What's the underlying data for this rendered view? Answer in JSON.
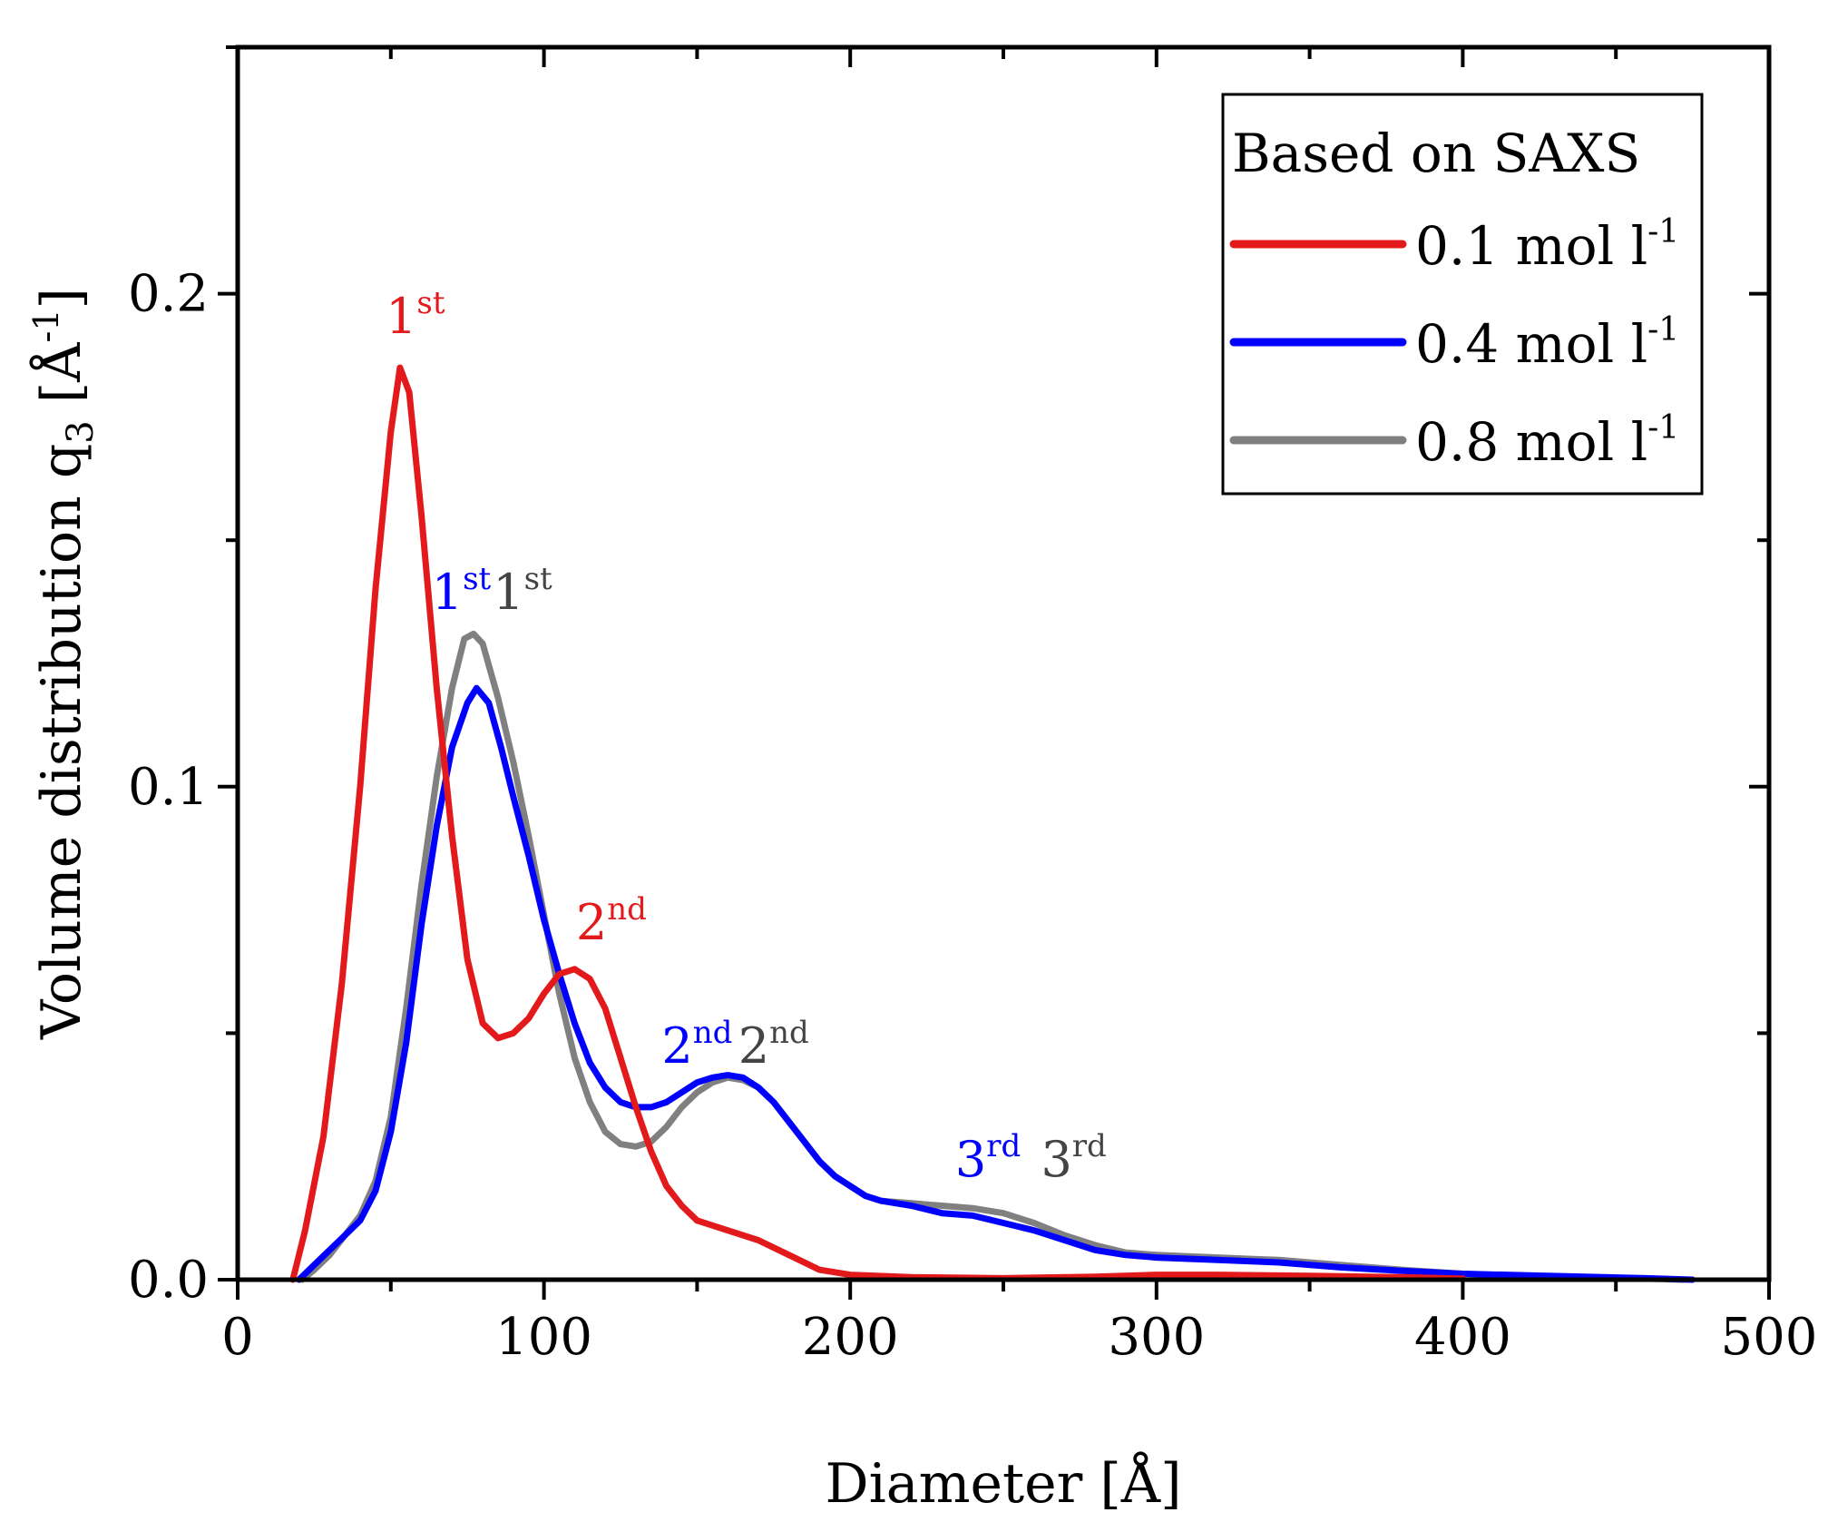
{
  "chart_data": {
    "type": "line",
    "xlabel": "Diameter [Å]",
    "ylabel": {
      "prefix": "Volume distribution q",
      "subscript": "3",
      "unit_open": " [Å",
      "unit_sup": "-1",
      "unit_close": "]"
    },
    "xlim": [
      0,
      500
    ],
    "ylim": [
      0,
      0.25
    ],
    "x_ticks": [
      "0",
      "100",
      "200",
      "300",
      "400",
      "500"
    ],
    "x_tick_values": [
      0,
      100,
      200,
      300,
      400,
      500
    ],
    "y_ticks": [
      "0.0",
      "0.1",
      "0.2"
    ],
    "y_tick_values": [
      0.0,
      0.1,
      0.2
    ],
    "x_minor_step": 50,
    "y_minor_step": 0.05,
    "grid": false,
    "legend": {
      "title": "Based on SAXS",
      "position": "top-right"
    },
    "series": [
      {
        "name": "0.1 mol l-1",
        "label_main": "0.1 mol l",
        "label_sup": "-1",
        "color": "#e31a1c",
        "points": [
          [
            18,
            0
          ],
          [
            22,
            0.01
          ],
          [
            28,
            0.029
          ],
          [
            34,
            0.06
          ],
          [
            40,
            0.1
          ],
          [
            45,
            0.14
          ],
          [
            50,
            0.172
          ],
          [
            53,
            0.185
          ],
          [
            56,
            0.18
          ],
          [
            60,
            0.155
          ],
          [
            65,
            0.12
          ],
          [
            70,
            0.09
          ],
          [
            75,
            0.065
          ],
          [
            80,
            0.052
          ],
          [
            85,
            0.049
          ],
          [
            90,
            0.05
          ],
          [
            95,
            0.053
          ],
          [
            100,
            0.058
          ],
          [
            105,
            0.062
          ],
          [
            110,
            0.063
          ],
          [
            115,
            0.061
          ],
          [
            120,
            0.055
          ],
          [
            125,
            0.045
          ],
          [
            130,
            0.035
          ],
          [
            135,
            0.026
          ],
          [
            140,
            0.019
          ],
          [
            145,
            0.015
          ],
          [
            150,
            0.012
          ],
          [
            160,
            0.01
          ],
          [
            170,
            0.008
          ],
          [
            180,
            0.005
          ],
          [
            190,
            0.002
          ],
          [
            200,
            0.001
          ],
          [
            220,
            0.0005
          ],
          [
            250,
            0.0003
          ],
          [
            280,
            0.0006
          ],
          [
            300,
            0.001
          ],
          [
            320,
            0.001
          ],
          [
            350,
            0.0008
          ],
          [
            380,
            0.0005
          ],
          [
            400,
            0.0002
          ]
        ]
      },
      {
        "name": "0.4 mol l-1",
        "label_main": "0.4 mol l",
        "label_sup": "-1",
        "color": "#0000ff",
        "points": [
          [
            20,
            0
          ],
          [
            25,
            0.003
          ],
          [
            30,
            0.006
          ],
          [
            35,
            0.009
          ],
          [
            40,
            0.012
          ],
          [
            45,
            0.018
          ],
          [
            50,
            0.03
          ],
          [
            55,
            0.048
          ],
          [
            60,
            0.072
          ],
          [
            65,
            0.092
          ],
          [
            70,
            0.108
          ],
          [
            75,
            0.117
          ],
          [
            78,
            0.12
          ],
          [
            82,
            0.117
          ],
          [
            86,
            0.108
          ],
          [
            90,
            0.098
          ],
          [
            95,
            0.086
          ],
          [
            100,
            0.073
          ],
          [
            105,
            0.062
          ],
          [
            110,
            0.052
          ],
          [
            115,
            0.044
          ],
          [
            120,
            0.039
          ],
          [
            125,
            0.036
          ],
          [
            130,
            0.035
          ],
          [
            135,
            0.035
          ],
          [
            140,
            0.036
          ],
          [
            145,
            0.038
          ],
          [
            150,
            0.04
          ],
          [
            155,
            0.041
          ],
          [
            160,
            0.0415
          ],
          [
            165,
            0.041
          ],
          [
            170,
            0.039
          ],
          [
            175,
            0.036
          ],
          [
            180,
            0.032
          ],
          [
            185,
            0.028
          ],
          [
            190,
            0.024
          ],
          [
            195,
            0.021
          ],
          [
            200,
            0.019
          ],
          [
            205,
            0.017
          ],
          [
            210,
            0.016
          ],
          [
            220,
            0.015
          ],
          [
            230,
            0.0135
          ],
          [
            240,
            0.013
          ],
          [
            250,
            0.0115
          ],
          [
            260,
            0.01
          ],
          [
            270,
            0.008
          ],
          [
            280,
            0.006
          ],
          [
            290,
            0.005
          ],
          [
            300,
            0.0045
          ],
          [
            320,
            0.004
          ],
          [
            340,
            0.0035
          ],
          [
            360,
            0.0025
          ],
          [
            380,
            0.0018
          ],
          [
            400,
            0.0012
          ],
          [
            420,
            0.0009
          ],
          [
            440,
            0.0006
          ],
          [
            460,
            0.0003
          ],
          [
            475,
            0
          ]
        ]
      },
      {
        "name": "0.8 mol l-1",
        "label_main": "0.8 mol l",
        "label_sup": "-1",
        "color": "#808080",
        "points": [
          [
            21,
            0
          ],
          [
            25,
            0.002
          ],
          [
            30,
            0.005
          ],
          [
            35,
            0.009
          ],
          [
            40,
            0.013
          ],
          [
            45,
            0.02
          ],
          [
            50,
            0.033
          ],
          [
            55,
            0.055
          ],
          [
            60,
            0.08
          ],
          [
            65,
            0.102
          ],
          [
            70,
            0.12
          ],
          [
            74,
            0.13
          ],
          [
            77,
            0.131
          ],
          [
            80,
            0.129
          ],
          [
            85,
            0.118
          ],
          [
            90,
            0.105
          ],
          [
            95,
            0.09
          ],
          [
            100,
            0.074
          ],
          [
            105,
            0.058
          ],
          [
            110,
            0.045
          ],
          [
            115,
            0.036
          ],
          [
            120,
            0.03
          ],
          [
            125,
            0.0275
          ],
          [
            130,
            0.027
          ],
          [
            135,
            0.028
          ],
          [
            140,
            0.031
          ],
          [
            145,
            0.035
          ],
          [
            150,
            0.038
          ],
          [
            155,
            0.04
          ],
          [
            160,
            0.041
          ],
          [
            165,
            0.0405
          ],
          [
            170,
            0.039
          ],
          [
            175,
            0.036
          ],
          [
            180,
            0.032
          ],
          [
            185,
            0.028
          ],
          [
            190,
            0.024
          ],
          [
            195,
            0.021
          ],
          [
            200,
            0.019
          ],
          [
            205,
            0.017
          ],
          [
            210,
            0.016
          ],
          [
            220,
            0.0155
          ],
          [
            230,
            0.015
          ],
          [
            240,
            0.0145
          ],
          [
            250,
            0.0135
          ],
          [
            260,
            0.0115
          ],
          [
            270,
            0.009
          ],
          [
            280,
            0.007
          ],
          [
            290,
            0.0055
          ],
          [
            300,
            0.005
          ],
          [
            320,
            0.0045
          ],
          [
            340,
            0.004
          ],
          [
            360,
            0.003
          ],
          [
            380,
            0.002
          ],
          [
            400,
            0.0012
          ],
          [
            420,
            0.0008
          ],
          [
            440,
            0.0005
          ],
          [
            460,
            0.0002
          ],
          [
            472,
            0
          ]
        ]
      }
    ],
    "annotations": [
      {
        "main": "1",
        "sup": "st",
        "color": "#e31a1c",
        "x": 58,
        "y": 0.192
      },
      {
        "main": "1",
        "sup": "st",
        "color": "#0000ff",
        "x": 73,
        "y": 0.136
      },
      {
        "main": "1",
        "sup": "st",
        "color": "#444444",
        "x": 93,
        "y": 0.136
      },
      {
        "main": "2",
        "sup": "nd",
        "color": "#e31a1c",
        "x": 122,
        "y": 0.069
      },
      {
        "main": "2",
        "sup": "nd",
        "color": "#0000ff",
        "x": 150,
        "y": 0.044
      },
      {
        "main": "2",
        "sup": "nd",
        "color": "#444444",
        "x": 175,
        "y": 0.044
      },
      {
        "main": "3",
        "sup": "rd",
        "color": "#0000ff",
        "x": 245,
        "y": 0.021
      },
      {
        "main": "3",
        "sup": "rd",
        "color": "#444444",
        "x": 273,
        "y": 0.021
      }
    ]
  }
}
